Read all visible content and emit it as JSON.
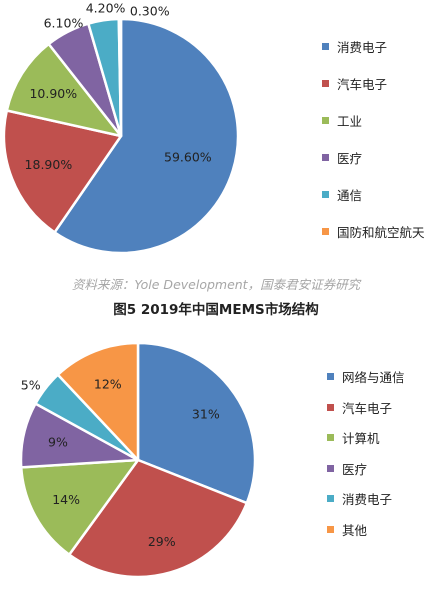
{
  "chart_data": [
    {
      "type": "pie",
      "categories": [
        "消费电子",
        "汽车电子",
        "工业",
        "医疗",
        "通信",
        "国防和航空航天"
      ],
      "values": [
        59.6,
        18.9,
        10.9,
        6.1,
        4.2,
        0.3
      ],
      "labels": [
        "59.60%",
        "18.90%",
        "10.90%",
        "6.10%",
        "4.20%",
        "0.30%"
      ],
      "colors": [
        "#4f81bd",
        "#c0504d",
        "#9bbb59",
        "#8064a2",
        "#4bacc6",
        "#f79646"
      ],
      "legend": "right"
    },
    {
      "type": "pie",
      "categories": [
        "网络与通信",
        "汽车电子",
        "计算机",
        "医疗",
        "消费电子",
        "其他"
      ],
      "values": [
        31,
        29,
        14,
        9,
        5,
        12
      ],
      "labels": [
        "31%",
        "29%",
        "14%",
        "9%",
        "5%",
        "12%"
      ],
      "colors": [
        "#4f81bd",
        "#c0504d",
        "#9bbb59",
        "#8064a2",
        "#4bacc6",
        "#f79646"
      ],
      "legend": "right"
    }
  ],
  "source": "资料来源：Yole Development，国泰君安证券研究",
  "caption": "图5  2019年中国MEMS市场结构"
}
